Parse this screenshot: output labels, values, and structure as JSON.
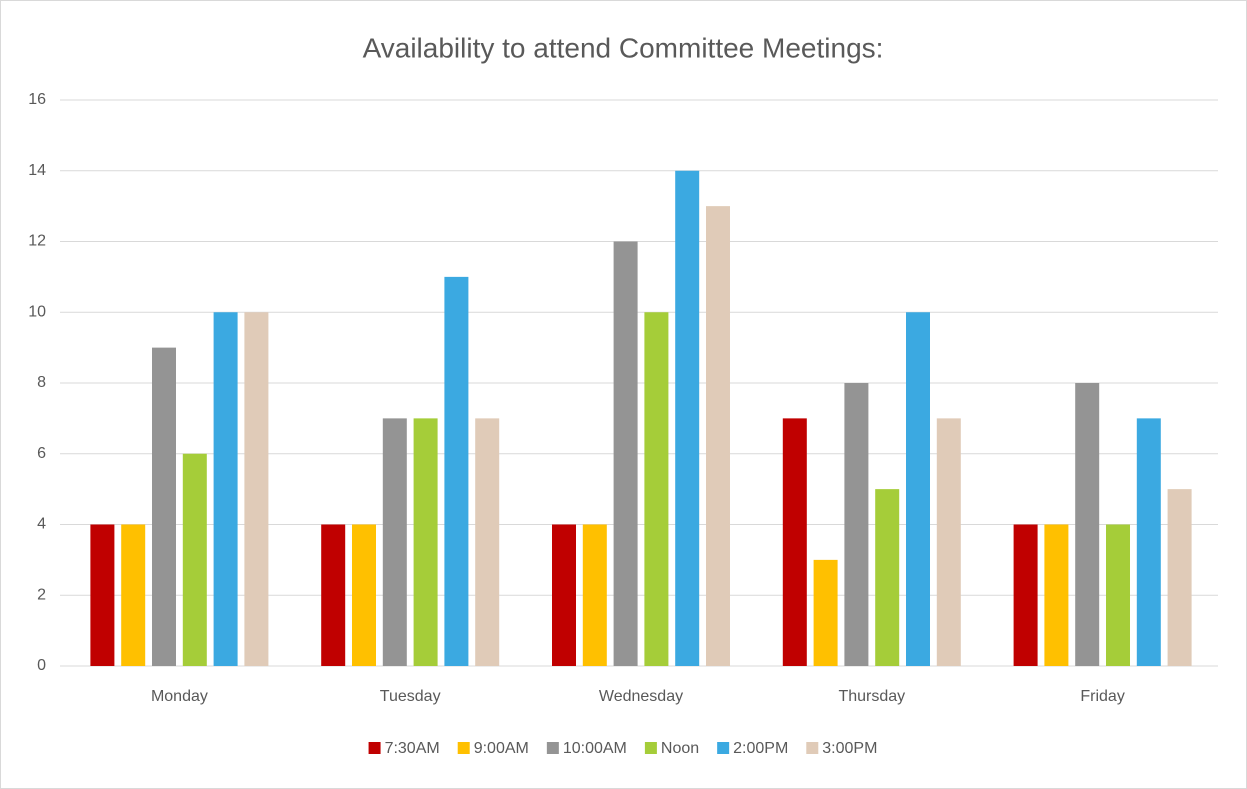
{
  "chart_data": {
    "type": "bar",
    "title": "Availability to attend Committee Meetings:",
    "categories": [
      "Monday",
      "Tuesday",
      "Wednesday",
      "Thursday",
      "Friday"
    ],
    "series": [
      {
        "name": "7:30AM",
        "color": "#c00000",
        "values": [
          4,
          4,
          4,
          7,
          4
        ]
      },
      {
        "name": "9:00AM",
        "color": "#ffc000",
        "values": [
          4,
          4,
          4,
          3,
          4
        ]
      },
      {
        "name": "10:00AM",
        "color": "#949494",
        "values": [
          9,
          7,
          12,
          8,
          8
        ]
      },
      {
        "name": "Noon",
        "color": "#a5cd39",
        "values": [
          6,
          7,
          10,
          5,
          4
        ]
      },
      {
        "name": "2:00PM",
        "color": "#3ba9e1",
        "values": [
          10,
          11,
          14,
          10,
          7
        ]
      },
      {
        "name": "3:00PM",
        "color": "#e0cbb8",
        "values": [
          10,
          7,
          13,
          7,
          5
        ]
      }
    ],
    "ylim": [
      0,
      16
    ],
    "yticks": [
      0,
      2,
      4,
      6,
      8,
      10,
      12,
      14,
      16
    ],
    "grid": true,
    "legend": "bottom"
  }
}
